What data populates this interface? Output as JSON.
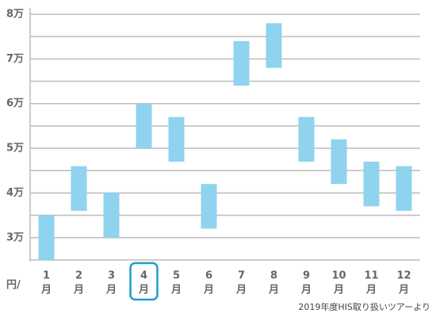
{
  "chart_data": {
    "type": "range-bar",
    "categories": [
      "1",
      "2",
      "3",
      "4",
      "5",
      "6",
      "7",
      "8",
      "9",
      "10",
      "11",
      "12"
    ],
    "category_suffix": "月",
    "low": [
      25000,
      36000,
      30000,
      50000,
      47000,
      32000,
      64000,
      68000,
      47000,
      42000,
      37000,
      36000
    ],
    "high": [
      35000,
      46000,
      40000,
      60000,
      57000,
      42000,
      74000,
      78000,
      57000,
      52000,
      47000,
      46000
    ],
    "color": "#8fd3ee",
    "ylim": [
      25000,
      80000
    ],
    "yticks": [
      {
        "value": 30000,
        "label": "3万"
      },
      {
        "value": 40000,
        "label": "4万"
      },
      {
        "value": 50000,
        "label": "5万"
      },
      {
        "value": 60000,
        "label": "6万"
      },
      {
        "value": 70000,
        "label": "7万"
      },
      {
        "value": 80000,
        "label": "8万"
      }
    ],
    "minor_yticks": [
      35000,
      45000,
      55000,
      65000,
      75000
    ],
    "grid": true,
    "unit_label": "円/",
    "highlight_index": 3,
    "highlight_color": "#1a9fc7",
    "source_note": "2019年度HIS取り扱いツアーより"
  }
}
